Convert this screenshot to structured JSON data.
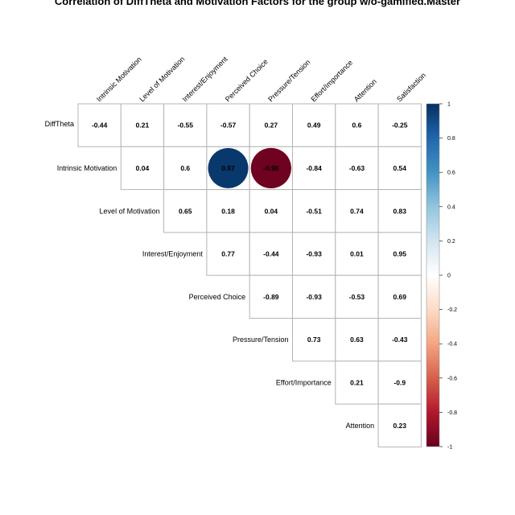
{
  "chart_data": {
    "type": "heatmap",
    "title": "Correlation of DiffTheta and Motivation Factors for the group w/o-gamified.Master",
    "columns": [
      "Intrinsic Motivation",
      "Level of Motivation",
      "Interest/Enjoyment",
      "Perceived Choice",
      "Pressure/Tension",
      "Effort/Importance",
      "Attention",
      "Satisfaction"
    ],
    "rows": [
      "DiffTheta",
      "Intrinsic Motivation",
      "Level of Motivation",
      "Interest/Enjoyment",
      "Perceived Choice",
      "Pressure/Tension",
      "Effort/Importance",
      "Attention"
    ],
    "values": [
      [
        -0.44,
        0.21,
        -0.55,
        -0.57,
        0.27,
        0.49,
        0.6,
        -0.25
      ],
      [
        null,
        0.04,
        0.6,
        0.97,
        -0.98,
        -0.84,
        -0.63,
        0.54
      ],
      [
        null,
        null,
        0.65,
        0.18,
        0.04,
        -0.51,
        0.74,
        0.83
      ],
      [
        null,
        null,
        null,
        0.77,
        -0.44,
        -0.93,
        0.01,
        0.95
      ],
      [
        null,
        null,
        null,
        null,
        -0.89,
        -0.93,
        -0.53,
        0.69
      ],
      [
        null,
        null,
        null,
        null,
        null,
        0.73,
        0.63,
        -0.43
      ],
      [
        null,
        null,
        null,
        null,
        null,
        null,
        0.21,
        -0.9
      ],
      [
        null,
        null,
        null,
        null,
        null,
        null,
        null,
        0.23
      ]
    ],
    "highlighted": [
      [
        1,
        3
      ],
      [
        1,
        4
      ]
    ],
    "colorbar": {
      "range": [
        -1,
        1
      ],
      "ticks": [
        1,
        0.8,
        0.6,
        0.4,
        0.2,
        0,
        -0.2,
        -0.4,
        -0.6,
        -0.8,
        -1
      ],
      "tick_labels": [
        "1",
        "0.8",
        "0.6",
        "0.4",
        "0.2",
        "0",
        "-0.2",
        "-0.4",
        "-0.6",
        "-0.8",
        "-1"
      ],
      "colors": [
        "#67001f",
        "#b2182b",
        "#d6604d",
        "#f4a582",
        "#fddbc7",
        "#ffffff",
        "#d1e5f0",
        "#92c5de",
        "#4393c3",
        "#2166ac",
        "#053061"
      ]
    }
  }
}
